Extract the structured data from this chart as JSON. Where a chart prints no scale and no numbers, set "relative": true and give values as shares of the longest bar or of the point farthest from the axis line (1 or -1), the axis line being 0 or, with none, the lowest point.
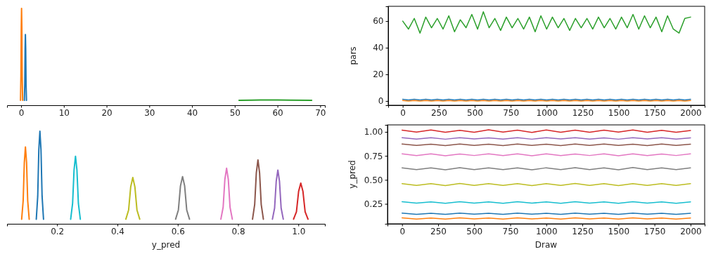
{
  "chart_data": [
    {
      "type": "line",
      "relative": true,
      "xlim": [
        -3.3,
        71.1
      ],
      "xticks": [
        0,
        10,
        20,
        30,
        40,
        50,
        60,
        70
      ],
      "tick_labels": "x",
      "series": [
        {
          "color": "#ff7f0e",
          "x": [
            -0.15,
            -0.05,
            0.03,
            0.1,
            0.17,
            0.25,
            0.35
          ],
          "values": [
            0.05,
            0.3,
            0.8,
            1,
            0.8,
            0.3,
            0.05
          ]
        },
        {
          "color": "#1f77b4",
          "x": [
            0.75,
            0.85,
            0.93,
            1.0,
            1.07,
            1.15,
            1.25
          ],
          "values": [
            0.05,
            0.22,
            0.58,
            0.73,
            0.58,
            0.22,
            0.05
          ]
        },
        {
          "color": "#2ca02c",
          "x": [
            51,
            54,
            56,
            58,
            60,
            63,
            68
          ],
          "values": [
            0.05,
            0.052,
            0.054,
            0.055,
            0.054,
            0.052,
            0.05
          ]
        }
      ]
    },
    {
      "type": "line",
      "ylabel": "pars",
      "xlim": [
        -101,
        2098
      ],
      "xticks": [
        0,
        250,
        500,
        750,
        1000,
        1250,
        1500,
        1750,
        2000
      ],
      "ylim": [
        -3.2,
        71.1
      ],
      "yticks": [
        0,
        20,
        40,
        60
      ],
      "x": [
        0,
        40,
        80,
        120,
        160,
        200,
        240,
        280,
        320,
        360,
        400,
        440,
        480,
        520,
        560,
        600,
        640,
        680,
        720,
        760,
        800,
        840,
        880,
        920,
        960,
        1000,
        1040,
        1080,
        1120,
        1160,
        1200,
        1240,
        1280,
        1320,
        1360,
        1400,
        1440,
        1480,
        1520,
        1560,
        1600,
        1640,
        1680,
        1720,
        1760,
        1800,
        1840,
        1880,
        1920,
        1960,
        2000
      ],
      "series": [
        {
          "color": "#2ca02c",
          "values": [
            60,
            54,
            62,
            51,
            63,
            55,
            62,
            54,
            64,
            52,
            61,
            55,
            65,
            54,
            67,
            55,
            62,
            53,
            63,
            55,
            62,
            54,
            63,
            52,
            64,
            54,
            63,
            55,
            62,
            53,
            62,
            55,
            62,
            54,
            63,
            55,
            62,
            54,
            63,
            55,
            65,
            54,
            64,
            55,
            63,
            52,
            64,
            54,
            51,
            62,
            63
          ]
        },
        {
          "color": "#1f77b4",
          "values": [
            1.3,
            0.8,
            1.3,
            0.8,
            1.3,
            0.8,
            1.3,
            0.8,
            1.3,
            0.8,
            1.3,
            0.8,
            1.3,
            0.8,
            1.3,
            0.8,
            1.3,
            0.8,
            1.3,
            0.8,
            1.3,
            0.8,
            1.3,
            0.8,
            1.3,
            0.8,
            1.3,
            0.8,
            1.3,
            0.8,
            1.3,
            0.8,
            1.3,
            0.8,
            1.3,
            0.8,
            1.3,
            0.8,
            1.3,
            0.8,
            1.3,
            0.8,
            1.3,
            0.8,
            1.3,
            0.8,
            1.3,
            0.8,
            1.3,
            0.8,
            1.3
          ]
        },
        {
          "color": "#ff7f0e",
          "values": [
            0.3,
            0,
            0.3,
            0,
            0.3,
            0,
            0.3,
            0,
            0.3,
            0,
            0.3,
            0,
            0.3,
            0,
            0.3,
            0,
            0.3,
            0,
            0.3,
            0,
            0.3,
            0,
            0.3,
            0,
            0.3,
            0,
            0.3,
            0,
            0.3,
            0,
            0.3,
            0,
            0.3,
            0,
            0.3,
            0,
            0.3,
            0,
            0.3,
            0,
            0.3,
            0,
            0.3,
            0,
            0.3,
            0,
            0.3,
            0,
            0.3,
            0,
            0.3
          ]
        }
      ]
    },
    {
      "type": "line",
      "relative": true,
      "xlabel": "y_pred",
      "xlim": [
        0.034,
        1.088
      ],
      "xticks": [
        {
          "value": 0.2,
          "label": "0.2"
        },
        {
          "value": 0.4,
          "label": "0.4"
        },
        {
          "value": 0.6,
          "label": "0.6"
        },
        {
          "value": 0.8,
          "label": "0.8"
        },
        {
          "value": 1.0,
          "label": "1.0"
        }
      ],
      "tick_labels": "x",
      "series": [
        {
          "color": "#ff7f0e",
          "x": [
            0.0825,
            0.0875,
            0.0913,
            0.095,
            0.0988,
            0.1025,
            0.1075
          ],
          "values": [
            0.05,
            0.25,
            0.66,
            0.83,
            0.66,
            0.25,
            0.05
          ]
        },
        {
          "color": "#1f77b4",
          "x": [
            0.131,
            0.1358,
            0.1394,
            0.143,
            0.1466,
            0.1502,
            0.155
          ],
          "values": [
            0.05,
            0.3,
            0.8,
            1,
            0.8,
            0.3,
            0.05
          ]
        },
        {
          "color": "#17becf",
          "x": [
            0.245,
            0.2514,
            0.2562,
            0.261,
            0.2658,
            0.2706,
            0.277
          ],
          "values": [
            0.05,
            0.22,
            0.58,
            0.73,
            0.58,
            0.22,
            0.05
          ]
        },
        {
          "color": "#bcbd22",
          "x": [
            0.428,
            0.4372,
            0.4441,
            0.451,
            0.4579,
            0.4648,
            0.474
          ],
          "values": [
            0.05,
            0.15,
            0.4,
            0.5,
            0.4,
            0.15,
            0.05
          ]
        },
        {
          "color": "#7f7f7f",
          "x": [
            0.593,
            0.6022,
            0.6091,
            0.616,
            0.6229,
            0.6298,
            0.639
          ],
          "values": [
            0.05,
            0.15,
            0.41,
            0.51,
            0.41,
            0.15,
            0.05
          ]
        },
        {
          "color": "#e377c2",
          "x": [
            0.743,
            0.7506,
            0.7563,
            0.762,
            0.7677,
            0.7734,
            0.781
          ],
          "values": [
            0.05,
            0.18,
            0.48,
            0.6,
            0.48,
            0.18,
            0.05
          ]
        },
        {
          "color": "#8c564b",
          "x": [
            0.848,
            0.8552,
            0.8606,
            0.866,
            0.8714,
            0.8768,
            0.884
          ],
          "values": [
            0.05,
            0.21,
            0.55,
            0.69,
            0.55,
            0.21,
            0.05
          ]
        },
        {
          "color": "#9467bd",
          "x": [
            0.914,
            0.9212,
            0.9266,
            0.932,
            0.9374,
            0.9428,
            0.95
          ],
          "values": [
            0.05,
            0.17,
            0.46,
            0.58,
            0.46,
            0.17,
            0.05
          ]
        },
        {
          "color": "#d62728",
          "x": [
            0.984,
            0.9936,
            1.0008,
            1.008,
            1.0152,
            1.0224,
            1.032
          ],
          "values": [
            0.05,
            0.13,
            0.35,
            0.44,
            0.35,
            0.13,
            0.05
          ]
        }
      ]
    },
    {
      "type": "line",
      "xlabel": "Draw",
      "ylabel": "y_pred",
      "xlim": [
        -101,
        2098
      ],
      "xticks": [
        0,
        250,
        500,
        750,
        1000,
        1250,
        1500,
        1750,
        2000
      ],
      "ylim": [
        0.042,
        1.073
      ],
      "yticks": [
        {
          "value": 0.25,
          "label": "0.25"
        },
        {
          "value": 0.5,
          "label": "0.50"
        },
        {
          "value": 0.75,
          "label": "0.75"
        },
        {
          "value": 1.0,
          "label": "1.00"
        }
      ],
      "x": [
        0,
        100,
        200,
        300,
        400,
        500,
        600,
        700,
        800,
        900,
        1000,
        1100,
        1200,
        1300,
        1400,
        1500,
        1600,
        1700,
        1800,
        1900,
        2000
      ],
      "series": [
        {
          "color": "#d62728",
          "values": [
            1.018,
            0.998,
            1.02,
            0.996,
            1.017,
            0.997,
            1.021,
            0.998,
            1.018,
            0.995,
            1.02,
            0.997,
            1.019,
            0.996,
            1.018,
            0.998,
            1.02,
            0.997,
            1.017,
            0.996,
            1.015
          ]
        },
        {
          "color": "#9467bd",
          "values": [
            0.94,
            0.925,
            0.939,
            0.924,
            0.94,
            0.926,
            0.938,
            0.925,
            0.94,
            0.924,
            0.939,
            0.926,
            0.94,
            0.925,
            0.938,
            0.924,
            0.94,
            0.926,
            0.939,
            0.925,
            0.938
          ]
        },
        {
          "color": "#8c564b",
          "values": [
            0.873,
            0.859,
            0.872,
            0.858,
            0.874,
            0.86,
            0.872,
            0.858,
            0.873,
            0.859,
            0.872,
            0.858,
            0.874,
            0.86,
            0.873,
            0.859,
            0.872,
            0.858,
            0.873,
            0.86,
            0.872
          ]
        },
        {
          "color": "#e377c2",
          "values": [
            0.771,
            0.753,
            0.772,
            0.752,
            0.77,
            0.754,
            0.771,
            0.753,
            0.772,
            0.752,
            0.771,
            0.753,
            0.77,
            0.754,
            0.772,
            0.752,
            0.771,
            0.753,
            0.77,
            0.754,
            0.771
          ]
        },
        {
          "color": "#7f7f7f",
          "values": [
            0.626,
            0.606,
            0.625,
            0.605,
            0.627,
            0.607,
            0.626,
            0.606,
            0.625,
            0.605,
            0.626,
            0.607,
            0.627,
            0.606,
            0.625,
            0.605,
            0.628,
            0.607,
            0.626,
            0.606,
            0.625
          ]
        },
        {
          "color": "#bcbd22",
          "values": [
            0.461,
            0.442,
            0.46,
            0.441,
            0.462,
            0.443,
            0.461,
            0.442,
            0.46,
            0.441,
            0.461,
            0.443,
            0.462,
            0.442,
            0.46,
            0.441,
            0.461,
            0.442,
            0.46,
            0.443,
            0.461
          ]
        },
        {
          "color": "#17becf",
          "values": [
            0.272,
            0.257,
            0.271,
            0.256,
            0.272,
            0.257,
            0.271,
            0.256,
            0.272,
            0.257,
            0.271,
            0.256,
            0.272,
            0.257,
            0.271,
            0.256,
            0.272,
            0.257,
            0.271,
            0.256,
            0.271
          ]
        },
        {
          "color": "#1f77b4",
          "values": [
            0.153,
            0.141,
            0.152,
            0.141,
            0.153,
            0.142,
            0.152,
            0.141,
            0.153,
            0.142,
            0.152,
            0.141,
            0.153,
            0.142,
            0.152,
            0.141,
            0.153,
            0.142,
            0.152,
            0.141,
            0.152
          ]
        },
        {
          "color": "#ff7f0e",
          "values": [
            0.104,
            0.092,
            0.103,
            0.092,
            0.104,
            0.093,
            0.103,
            0.092,
            0.104,
            0.093,
            0.103,
            0.092,
            0.104,
            0.093,
            0.103,
            0.092,
            0.104,
            0.093,
            0.103,
            0.092,
            0.103
          ]
        }
      ]
    }
  ]
}
